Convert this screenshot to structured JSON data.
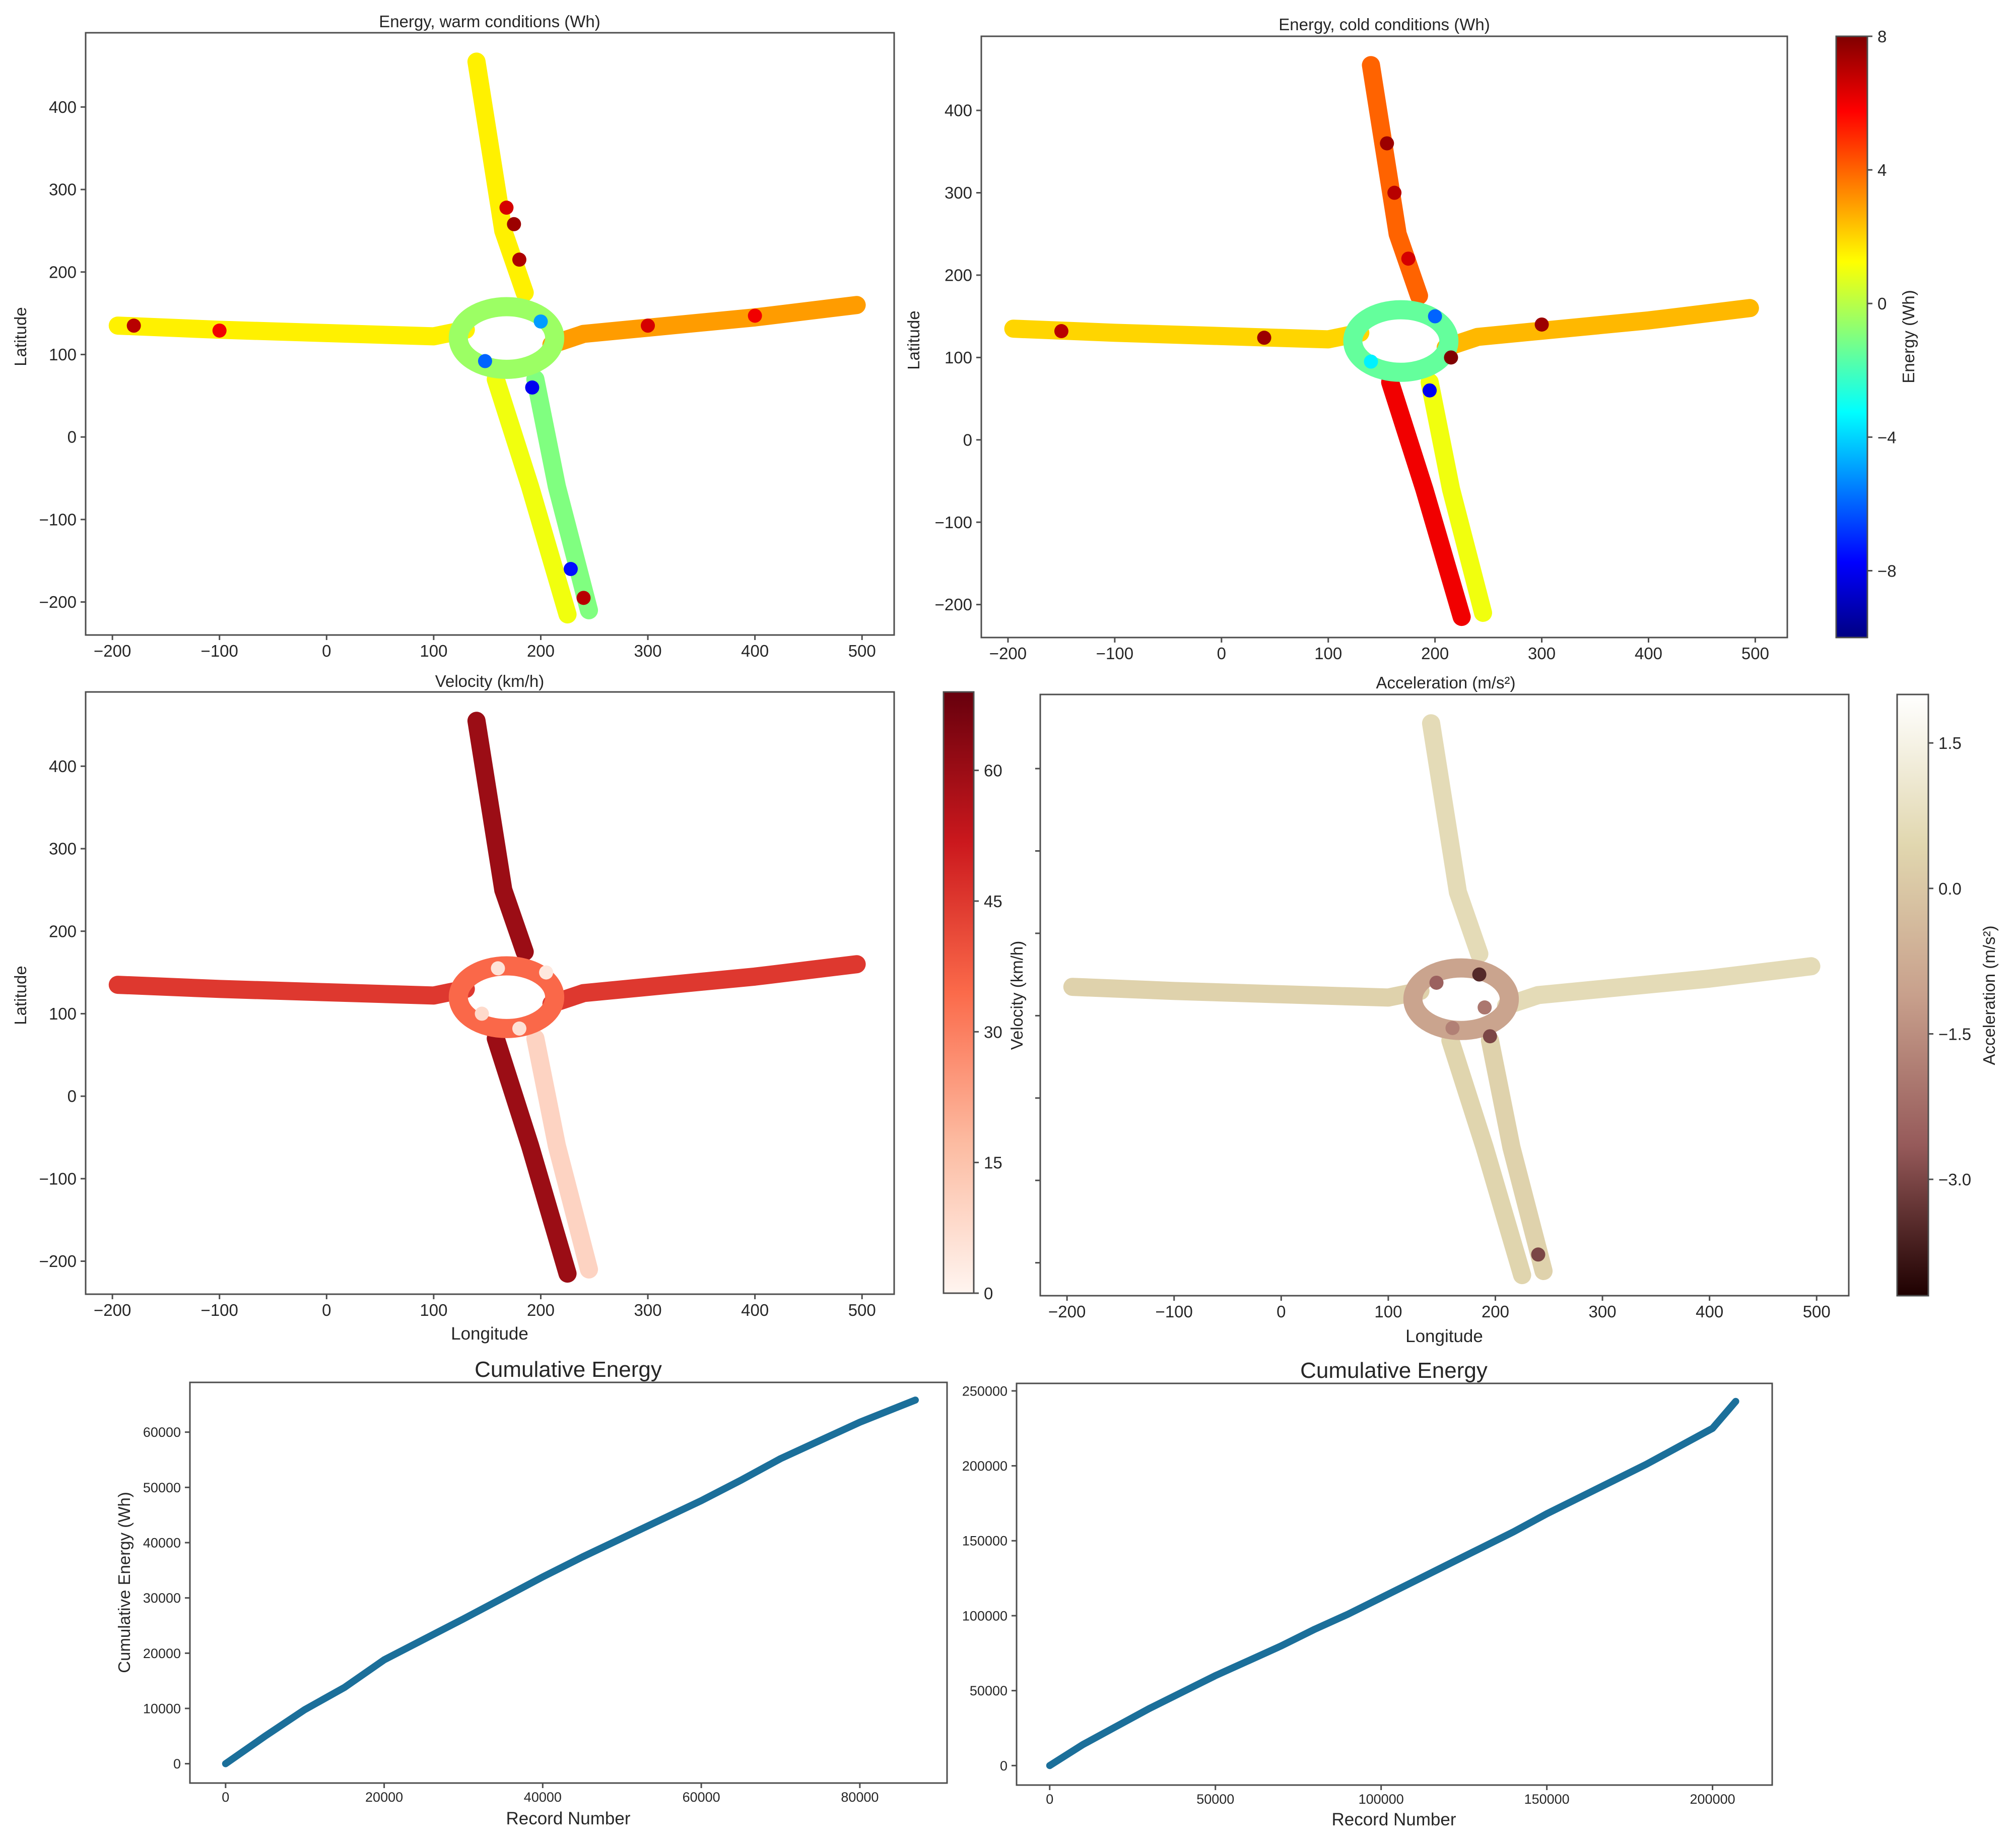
{
  "colors": {
    "line": "#1b6f9a",
    "frame": "#4d4d4d"
  },
  "colorbars": [
    {
      "label": "Energy (Wh)",
      "cmap": "jet",
      "min": -10,
      "max": 8,
      "ticks": [
        -8,
        -4,
        0,
        4,
        8
      ],
      "tick_labels": [
        "−8",
        "−4",
        "0",
        "4",
        "8"
      ]
    },
    {
      "label": "Velocity (km/h)",
      "cmap": "reds",
      "min": 0,
      "max": 69,
      "ticks": [
        0,
        15,
        30,
        45,
        60
      ],
      "tick_labels": [
        "0",
        "15",
        "30",
        "45",
        "60"
      ]
    },
    {
      "label": "Acceleration (m/s²)",
      "cmap": "pink",
      "min": -4.2,
      "max": 2.0,
      "ticks": [
        1.5,
        0.0,
        -1.5,
        -3.0
      ],
      "tick_labels": [
        "1.5",
        "0.0",
        "−1.5",
        "−3.0"
      ]
    }
  ],
  "chart_data": [
    {
      "type": "scatter",
      "title": "Energy, warm conditions (Wh)",
      "xlabel": "",
      "ylabel": "Latitude",
      "xlim": [
        -225,
        530
      ],
      "ylim": [
        -240,
        490
      ],
      "xticks": [
        -200,
        -100,
        0,
        100,
        200,
        300,
        400,
        500
      ],
      "xtick_labels": [
        "−200",
        "−100",
        "0",
        "100",
        "200",
        "300",
        "400",
        "500"
      ],
      "yticks": [
        -200,
        -100,
        0,
        100,
        200,
        300,
        400
      ],
      "ytick_labels": [
        "−200",
        "−100",
        "0",
        "100",
        "200",
        "300",
        "400"
      ],
      "color_variable": "Energy (Wh)",
      "grid": false,
      "road_segments": [
        {
          "name": "west-arm",
          "points": [
            [
              -195,
              135
            ],
            [
              -100,
              130
            ],
            [
              0,
              126
            ],
            [
              100,
              122
            ],
            [
              130,
              130
            ]
          ],
          "value": 1.5
        },
        {
          "name": "north-arm",
          "points": [
            [
              140,
              455
            ],
            [
              165,
              250
            ],
            [
              185,
              175
            ]
          ],
          "value": 1.5
        },
        {
          "name": "east-arm",
          "points": [
            [
              210,
              112
            ],
            [
              240,
              125
            ],
            [
              400,
              145
            ],
            [
              495,
              160
            ]
          ],
          "value": 3.0
        },
        {
          "name": "south-arm-in",
          "points": [
            [
              158,
              70
            ],
            [
              190,
              -60
            ],
            [
              225,
              -215
            ]
          ],
          "value": 1.0
        },
        {
          "name": "south-arm-out",
          "points": [
            [
              195,
              70
            ],
            [
              215,
              -60
            ],
            [
              245,
              -210
            ]
          ],
          "value": -1.0
        },
        {
          "name": "roundabout",
          "center": [
            168,
            120
          ],
          "radius_x": 45,
          "radius_y": 38,
          "value": -0.5
        }
      ],
      "highlights": [
        {
          "x": 175,
          "y": 258,
          "value": 7.5
        },
        {
          "x": 180,
          "y": 215,
          "value": 7.2
        },
        {
          "x": 168,
          "y": 278,
          "value": 6.5
        },
        {
          "x": 240,
          "y": -195,
          "value": 7.0
        },
        {
          "x": 228,
          "y": -160,
          "value": -7.5
        },
        {
          "x": 192,
          "y": 60,
          "value": -8.0
        },
        {
          "x": -180,
          "y": 135,
          "value": 7.0
        },
        {
          "x": -100,
          "y": 129,
          "value": 6.0
        },
        {
          "x": 300,
          "y": 135,
          "value": 6.5
        },
        {
          "x": 400,
          "y": 147,
          "value": 6.0
        },
        {
          "x": 148,
          "y": 92,
          "value": -6.0
        },
        {
          "x": 200,
          "y": 140,
          "value": -5.0
        }
      ]
    },
    {
      "type": "scatter",
      "title": "Energy, cold conditions (Wh)",
      "xlabel": "Acceleration (m/s²)",
      "ylabel": "Latitude",
      "xlim": [
        -225,
        530
      ],
      "ylim": [
        -240,
        490
      ],
      "xticks": [
        -200,
        -100,
        0,
        100,
        200,
        300,
        400,
        500
      ],
      "xtick_labels": [
        "−200",
        "−100",
        "0",
        "100",
        "200",
        "300",
        "400",
        "500"
      ],
      "yticks": [
        -200,
        -100,
        0,
        100,
        200,
        300,
        400
      ],
      "ytick_labels": [
        "−200",
        "−100",
        "0",
        "100",
        "200",
        "300",
        "400"
      ],
      "color_variable": "Energy (Wh)",
      "grid": false,
      "road_segments": [
        {
          "name": "west-arm",
          "points": [
            [
              -195,
              135
            ],
            [
              -100,
              130
            ],
            [
              0,
              126
            ],
            [
              100,
              122
            ],
            [
              130,
              130
            ]
          ],
          "value": 2.0
        },
        {
          "name": "north-arm",
          "points": [
            [
              140,
              455
            ],
            [
              165,
              250
            ],
            [
              185,
              175
            ]
          ],
          "value": 4.0
        },
        {
          "name": "east-arm",
          "points": [
            [
              210,
              112
            ],
            [
              240,
              125
            ],
            [
              400,
              145
            ],
            [
              495,
              160
            ]
          ],
          "value": 2.5
        },
        {
          "name": "south-arm-in",
          "points": [
            [
              158,
              70
            ],
            [
              190,
              -60
            ],
            [
              225,
              -215
            ]
          ],
          "value": 6.0
        },
        {
          "name": "south-arm-out",
          "points": [
            [
              195,
              70
            ],
            [
              215,
              -60
            ],
            [
              245,
              -210
            ]
          ],
          "value": 1.0
        },
        {
          "name": "roundabout",
          "center": [
            168,
            120
          ],
          "radius_x": 45,
          "radius_y": 38,
          "value": -1.5
        }
      ],
      "highlights": [
        {
          "x": 155,
          "y": 360,
          "value": 7.5
        },
        {
          "x": 162,
          "y": 300,
          "value": 7.0
        },
        {
          "x": 175,
          "y": 220,
          "value": 6.5
        },
        {
          "x": 195,
          "y": 60,
          "value": -8.0
        },
        {
          "x": 200,
          "y": 150,
          "value": -6.0
        },
        {
          "x": 215,
          "y": 100,
          "value": 8.0
        },
        {
          "x": -150,
          "y": 132,
          "value": 7.0
        },
        {
          "x": 40,
          "y": 124,
          "value": 7.5
        },
        {
          "x": 300,
          "y": 140,
          "value": 7.5
        },
        {
          "x": 140,
          "y": 95,
          "value": -3.5
        }
      ]
    },
    {
      "type": "scatter",
      "title": "Velocity (km/h)",
      "xlabel": "Longitude",
      "ylabel": "Latitude",
      "xlim": [
        -225,
        530
      ],
      "ylim": [
        -240,
        490
      ],
      "xticks": [
        -200,
        -100,
        0,
        100,
        200,
        300,
        400,
        500
      ],
      "xtick_labels": [
        "−200",
        "−100",
        "0",
        "100",
        "200",
        "300",
        "400",
        "500"
      ],
      "yticks": [
        -200,
        -100,
        0,
        100,
        200,
        300,
        400
      ],
      "ytick_labels": [
        "−200",
        "−100",
        "0",
        "100",
        "200",
        "300",
        "400"
      ],
      "color_variable": "Velocity (km/h)",
      "grid": false,
      "road_segments": [
        {
          "name": "west-arm",
          "points": [
            [
              -195,
              135
            ],
            [
              -100,
              130
            ],
            [
              0,
              126
            ],
            [
              100,
              122
            ],
            [
              130,
              130
            ]
          ],
          "value": 45
        },
        {
          "name": "north-arm",
          "points": [
            [
              140,
              455
            ],
            [
              165,
              250
            ],
            [
              185,
              175
            ]
          ],
          "value": 60
        },
        {
          "name": "east-arm",
          "points": [
            [
              210,
              112
            ],
            [
              240,
              125
            ],
            [
              400,
              145
            ],
            [
              495,
              160
            ]
          ],
          "value": 45
        },
        {
          "name": "south-arm-in",
          "points": [
            [
              158,
              70
            ],
            [
              190,
              -60
            ],
            [
              225,
              -215
            ]
          ],
          "value": 60
        },
        {
          "name": "south-arm-out",
          "points": [
            [
              195,
              70
            ],
            [
              215,
              -60
            ],
            [
              245,
              -210
            ]
          ],
          "value": 10
        },
        {
          "name": "roundabout",
          "center": [
            168,
            120
          ],
          "radius_x": 45,
          "radius_y": 38,
          "value": 35
        }
      ],
      "highlights": [
        {
          "x": 160,
          "y": 155,
          "value": 5
        },
        {
          "x": 145,
          "y": 100,
          "value": 8
        },
        {
          "x": 180,
          "y": 82,
          "value": 6
        },
        {
          "x": 205,
          "y": 150,
          "value": 4
        }
      ]
    },
    {
      "type": "scatter",
      "title": "",
      "xlabel": "Longitude",
      "ylabel": "",
      "xlim": [
        -225,
        530
      ],
      "ylim": [
        -240,
        490
      ],
      "xticks": [
        -200,
        -100,
        0,
        100,
        200,
        300,
        400,
        500
      ],
      "xtick_labels": [
        "−200",
        "−100",
        "0",
        "100",
        "200",
        "300",
        "400",
        "500"
      ],
      "yticks": [
        -200,
        -100,
        0,
        100,
        200,
        300,
        400
      ],
      "ytick_labels": [
        "",
        "",
        "",
        "",
        "",
        "",
        ""
      ],
      "color_variable": "Acceleration (m/s²)",
      "grid": false,
      "road_segments": [
        {
          "name": "west-arm",
          "points": [
            [
              -195,
              135
            ],
            [
              -100,
              130
            ],
            [
              0,
              126
            ],
            [
              100,
              122
            ],
            [
              130,
              130
            ]
          ],
          "value": 0.3
        },
        {
          "name": "north-arm",
          "points": [
            [
              140,
              455
            ],
            [
              165,
              250
            ],
            [
              185,
              175
            ]
          ],
          "value": 0.6
        },
        {
          "name": "east-arm",
          "points": [
            [
              210,
              112
            ],
            [
              240,
              125
            ],
            [
              400,
              145
            ],
            [
              495,
              160
            ]
          ],
          "value": 0.6
        },
        {
          "name": "south-arm-in",
          "points": [
            [
              158,
              70
            ],
            [
              190,
              -60
            ],
            [
              225,
              -215
            ]
          ],
          "value": 0.4
        },
        {
          "name": "south-arm-out",
          "points": [
            [
              195,
              70
            ],
            [
              215,
              -60
            ],
            [
              245,
              -210
            ]
          ],
          "value": 0.3
        },
        {
          "name": "roundabout",
          "center": [
            168,
            120
          ],
          "radius_x": 45,
          "radius_y": 38,
          "value": -1.0
        }
      ],
      "highlights": [
        {
          "x": 145,
          "y": 140,
          "value": -2.5
        },
        {
          "x": 190,
          "y": 110,
          "value": -2.0
        },
        {
          "x": 195,
          "y": 75,
          "value": -3.0
        },
        {
          "x": 160,
          "y": 85,
          "value": -1.8
        },
        {
          "x": 240,
          "y": -190,
          "value": -3.0
        },
        {
          "x": 185,
          "y": 150,
          "value": -3.5
        }
      ]
    },
    {
      "type": "line",
      "title": "Cumulative Energy",
      "xlabel": "Record Number",
      "ylabel": "Cumulative Energy (Wh)",
      "xlim": [
        -4500,
        91000
      ],
      "ylim": [
        -3500,
        69000
      ],
      "xticks": [
        0,
        20000,
        40000,
        60000,
        80000
      ],
      "xtick_labels": [
        "0",
        "20000",
        "40000",
        "60000",
        "80000"
      ],
      "yticks": [
        0,
        10000,
        20000,
        30000,
        40000,
        50000,
        60000
      ],
      "ytick_labels": [
        "0",
        "10000",
        "20000",
        "30000",
        "40000",
        "50000",
        "60000"
      ],
      "grid": false,
      "series": [
        {
          "x": [
            0,
            5000,
            10000,
            15000,
            20000,
            25000,
            30000,
            35000,
            40000,
            45000,
            50000,
            55000,
            60000,
            65000,
            70000,
            75000,
            80000,
            87000
          ],
          "y": [
            0,
            5000,
            9800,
            13800,
            18800,
            22500,
            26200,
            30000,
            33800,
            37400,
            40800,
            44200,
            47600,
            51300,
            55200,
            58500,
            61800,
            65800
          ]
        }
      ]
    },
    {
      "type": "line",
      "title": "Cumulative Energy",
      "xlabel": "Record Number",
      "ylabel": "",
      "xlim": [
        -10000,
        218000
      ],
      "ylim": [
        -13000,
        255000
      ],
      "xticks": [
        0,
        50000,
        100000,
        150000,
        200000
      ],
      "xtick_labels": [
        "0",
        "50000",
        "100000",
        "150000",
        "200000"
      ],
      "yticks": [
        0,
        50000,
        100000,
        150000,
        200000,
        250000
      ],
      "ytick_labels": [
        "0",
        "50000",
        "100000",
        "150000",
        "200000",
        "250000"
      ],
      "grid": false,
      "series": [
        {
          "x": [
            0,
            10000,
            20000,
            30000,
            40000,
            50000,
            60000,
            70000,
            80000,
            90000,
            100000,
            110000,
            120000,
            130000,
            140000,
            150000,
            160000,
            170000,
            180000,
            190000,
            200000,
            207000
          ],
          "y": [
            0,
            14000,
            26000,
            38000,
            49000,
            60000,
            70000,
            80000,
            91000,
            101000,
            112000,
            123000,
            134000,
            145000,
            156000,
            168000,
            179000,
            190000,
            201000,
            213000,
            225000,
            243000
          ]
        }
      ]
    }
  ]
}
